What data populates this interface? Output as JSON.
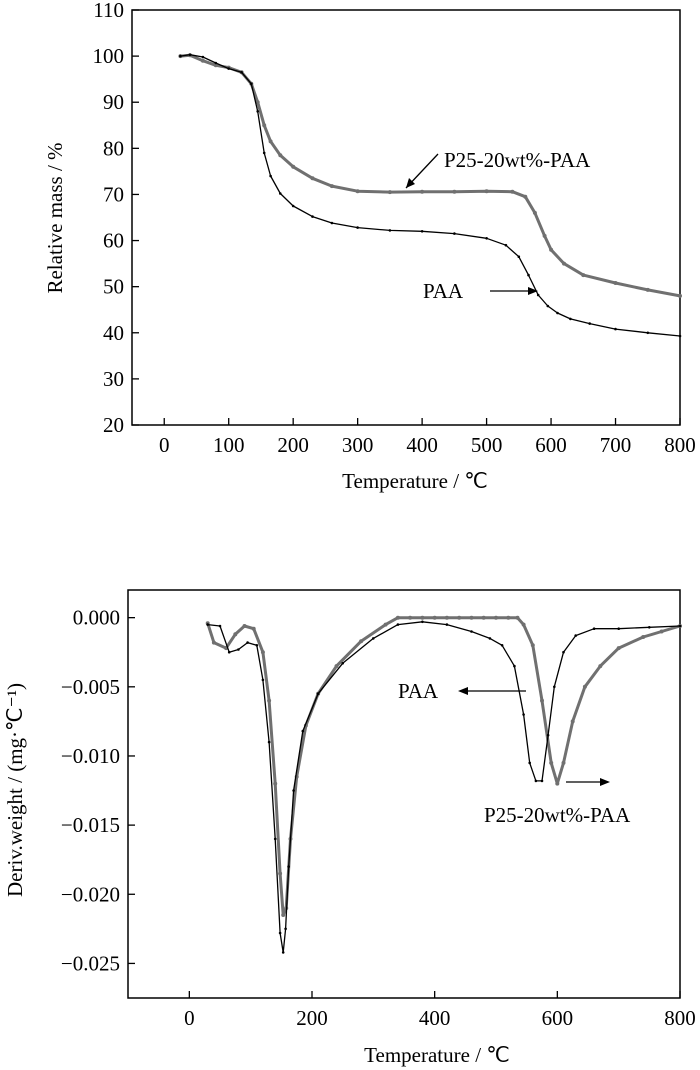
{
  "chart_data": [
    {
      "type": "line",
      "xlabel": "Temperature / ℃",
      "ylabel": "Relative mass / %",
      "xlim": [
        -50,
        800
      ],
      "ylim": [
        20,
        110
      ],
      "x_ticks": [
        0,
        100,
        200,
        300,
        400,
        500,
        600,
        700,
        800
      ],
      "y_ticks": [
        20,
        30,
        40,
        50,
        60,
        70,
        80,
        90,
        100,
        110
      ],
      "grid": false,
      "series": [
        {
          "name": "P25-20wt%-PAA",
          "color": "#707070",
          "x": [
            25,
            40,
            60,
            80,
            100,
            120,
            135,
            145,
            155,
            165,
            180,
            200,
            230,
            260,
            300,
            350,
            400,
            450,
            500,
            540,
            560,
            575,
            590,
            600,
            620,
            650,
            700,
            750,
            800
          ],
          "y": [
            100,
            100.2,
            99,
            98,
            97.5,
            96.5,
            94,
            90,
            85,
            81.5,
            78.5,
            76,
            73.5,
            71.8,
            70.7,
            70.5,
            70.6,
            70.6,
            70.7,
            70.6,
            69.5,
            66,
            61,
            58,
            55,
            52.5,
            50.8,
            49.3,
            48
          ]
        },
        {
          "name": "PAA",
          "color": "#000000",
          "x": [
            25,
            40,
            60,
            80,
            100,
            120,
            135,
            145,
            155,
            165,
            180,
            200,
            230,
            260,
            300,
            350,
            400,
            450,
            500,
            530,
            550,
            565,
            580,
            595,
            610,
            630,
            660,
            700,
            750,
            800
          ],
          "y": [
            100,
            100.3,
            99.8,
            98.5,
            97.3,
            96.5,
            94,
            88,
            79,
            74,
            70.2,
            67.5,
            65.2,
            63.8,
            62.8,
            62.2,
            62,
            61.5,
            60.5,
            59,
            56.5,
            52.5,
            48.2,
            45.8,
            44.3,
            43,
            42,
            40.8,
            40,
            39.3
          ]
        }
      ],
      "annotations": [
        {
          "text": "P25-20wt%-PAA",
          "target_series": "P25-20wt%-PAA"
        },
        {
          "text": "PAA",
          "target_series": "PAA"
        }
      ]
    },
    {
      "type": "line",
      "xlabel": "Temperature / ℃",
      "ylabel": "Deriv.weight / (mg·℃⁻¹)",
      "xlim": [
        -100,
        800
      ],
      "ylim": [
        -0.0275,
        0.002
      ],
      "x_ticks": [
        0,
        200,
        400,
        600,
        800
      ],
      "y_ticks": [
        0.0,
        -0.005,
        -0.01,
        -0.015,
        -0.02,
        -0.025
      ],
      "y_tick_labels": [
        "0.000",
        "−0.005",
        "−0.010",
        "−0.015",
        "−0.020",
        "−0.025"
      ],
      "grid": false,
      "series": [
        {
          "name": "P25-20wt%-PAA",
          "color": "#707070",
          "x": [
            30,
            40,
            60,
            75,
            90,
            105,
            120,
            130,
            140,
            148,
            153,
            158,
            165,
            175,
            190,
            210,
            240,
            280,
            320,
            340,
            360,
            380,
            400,
            420,
            440,
            460,
            480,
            500,
            520,
            535,
            545,
            560,
            575,
            590,
            600,
            610,
            625,
            645,
            670,
            700,
            740,
            770,
            800
          ],
          "y": [
            -0.0004,
            -0.0018,
            -0.0022,
            -0.0012,
            -0.0006,
            -0.0008,
            -0.0025,
            -0.006,
            -0.012,
            -0.0185,
            -0.0215,
            -0.021,
            -0.016,
            -0.0115,
            -0.0078,
            -0.0055,
            -0.0035,
            -0.0017,
            -0.0005,
            0,
            0,
            0,
            0,
            0,
            0,
            0,
            0,
            0,
            0,
            0,
            -0.0005,
            -0.002,
            -0.006,
            -0.0105,
            -0.012,
            -0.0105,
            -0.0075,
            -0.005,
            -0.0035,
            -0.0022,
            -0.0014,
            -0.001,
            -0.0006
          ]
        },
        {
          "name": "PAA",
          "color": "#000000",
          "x": [
            30,
            50,
            65,
            80,
            95,
            110,
            120,
            130,
            140,
            148,
            153,
            157,
            162,
            170,
            185,
            210,
            250,
            300,
            340,
            380,
            420,
            460,
            490,
            510,
            530,
            545,
            555,
            565,
            575,
            585,
            595,
            610,
            630,
            660,
            700,
            750,
            800
          ],
          "y": [
            -0.0005,
            -0.0006,
            -0.0025,
            -0.0023,
            -0.0018,
            -0.002,
            -0.0045,
            -0.009,
            -0.016,
            -0.0228,
            -0.0242,
            -0.0225,
            -0.018,
            -0.0125,
            -0.0082,
            -0.0055,
            -0.0033,
            -0.0015,
            -0.0005,
            -0.0003,
            -0.0005,
            -0.001,
            -0.0015,
            -0.002,
            -0.0035,
            -0.007,
            -0.0105,
            -0.0118,
            -0.0118,
            -0.0085,
            -0.005,
            -0.0025,
            -0.0013,
            -0.0008,
            -0.0008,
            -0.0007,
            -0.0006
          ]
        }
      ],
      "annotations": [
        {
          "text": "PAA",
          "target_series": "PAA"
        },
        {
          "text": "P25-20wt%-PAA",
          "target_series": "P25-20wt%-PAA"
        }
      ]
    }
  ]
}
